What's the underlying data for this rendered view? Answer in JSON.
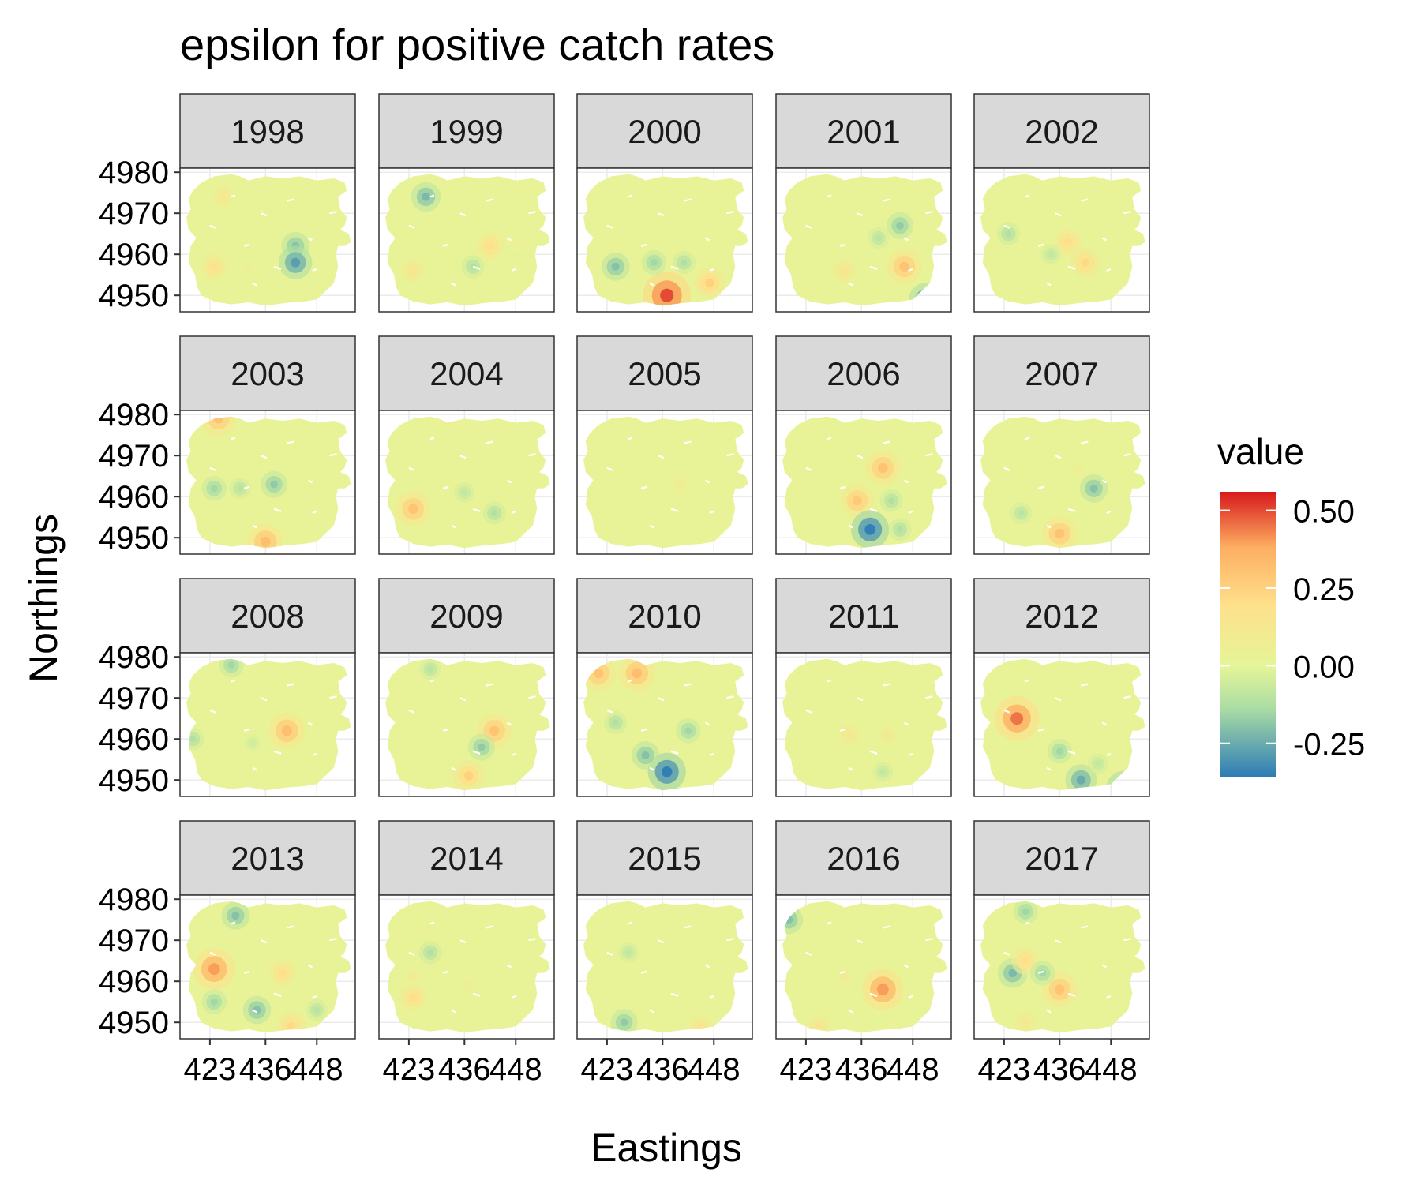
{
  "chart_data": {
    "type": "heatmap",
    "title": "epsilon for positive catch rates",
    "xlabel": "Eastings",
    "ylabel": "Northings",
    "facets": [
      "1998",
      "1999",
      "2000",
      "2001",
      "2002",
      "2003",
      "2004",
      "2005",
      "2006",
      "2007",
      "2008",
      "2009",
      "2010",
      "2011",
      "2012",
      "2013",
      "2014",
      "2015",
      "2016",
      "2017"
    ],
    "x_ticks": [
      "423",
      "436",
      "448"
    ],
    "x_tick_values": [
      423,
      436,
      448
    ],
    "y_ticks": [
      "4980",
      "4970",
      "4960",
      "4950"
    ],
    "y_tick_values": [
      4980,
      4970,
      4960,
      4950
    ],
    "xlim": [
      416,
      457
    ],
    "ylim": [
      4946,
      4981
    ],
    "legend": {
      "title": "value",
      "labels": [
        "0.50",
        "0.25",
        "0.00",
        "-0.25"
      ],
      "values": [
        0.5,
        0.25,
        0.0,
        -0.25
      ],
      "range": [
        -0.36,
        0.56
      ],
      "colors": [
        "#2c7bb6",
        "#abdda4",
        "#e6f598",
        "#fee08b",
        "#fdae61",
        "#d7191c"
      ],
      "position": "right"
    },
    "hotspots": {
      "1998": [
        [
          426,
          4974,
          0.12
        ],
        [
          443,
          4962,
          -0.2
        ],
        [
          443,
          4958,
          -0.28
        ],
        [
          424,
          4957,
          0.18
        ],
        [
          432,
          4957,
          0.05
        ]
      ],
      "1999": [
        [
          427,
          4974,
          -0.22
        ],
        [
          442,
          4962,
          0.2
        ],
        [
          424,
          4956,
          0.15
        ],
        [
          438,
          4957,
          -0.12
        ],
        [
          448,
          4963,
          0.05
        ]
      ],
      "2000": [
        [
          437,
          4950,
          0.5
        ],
        [
          447,
          4953,
          0.25
        ],
        [
          425,
          4957,
          -0.2
        ],
        [
          434,
          4958,
          -0.15
        ],
        [
          441,
          4958,
          -0.12
        ]
      ],
      "2001": [
        [
          445,
          4967,
          -0.18
        ],
        [
          440,
          4964,
          -0.1
        ],
        [
          446,
          4957,
          0.3
        ],
        [
          432,
          4956,
          0.15
        ],
        [
          451,
          4949,
          -0.28
        ]
      ],
      "2002": [
        [
          438,
          4963,
          0.2
        ],
        [
          442,
          4958,
          0.22
        ],
        [
          424,
          4965,
          -0.12
        ],
        [
          434,
          4960,
          -0.08
        ]
      ],
      "2003": [
        [
          425,
          4979,
          0.3
        ],
        [
          436,
          4949,
          0.32
        ],
        [
          438,
          4963,
          -0.18
        ],
        [
          424,
          4962,
          -0.15
        ],
        [
          430,
          4962,
          -0.1
        ]
      ],
      "2004": [
        [
          424,
          4957,
          0.3
        ],
        [
          432,
          4979,
          0.1
        ],
        [
          443,
          4956,
          -0.12
        ],
        [
          436,
          4961,
          -0.08
        ]
      ],
      "2005": [
        [
          440,
          4963,
          0.08
        ]
      ],
      "2006": [
        [
          441,
          4967,
          0.3
        ],
        [
          435,
          4959,
          0.28
        ],
        [
          438,
          4952,
          -0.35
        ],
        [
          443,
          4959,
          -0.12
        ],
        [
          445,
          4952,
          -0.12
        ]
      ],
      "2007": [
        [
          444,
          4962,
          -0.2
        ],
        [
          436,
          4951,
          0.3
        ],
        [
          427,
          4956,
          -0.1
        ],
        [
          440,
          4967,
          0.06
        ]
      ],
      "2008": [
        [
          441,
          4962,
          0.32
        ],
        [
          428,
          4978,
          -0.15
        ],
        [
          419,
          4960,
          -0.12
        ],
        [
          433,
          4959,
          -0.05
        ]
      ],
      "2009": [
        [
          443,
          4962,
          0.3
        ],
        [
          437,
          4951,
          0.25
        ],
        [
          440,
          4958,
          -0.18
        ],
        [
          428,
          4977,
          -0.1
        ]
      ],
      "2010": [
        [
          421,
          4976,
          0.3
        ],
        [
          430,
          4976,
          0.32
        ],
        [
          437,
          4952,
          -0.35
        ],
        [
          442,
          4962,
          -0.15
        ],
        [
          432,
          4956,
          -0.2
        ],
        [
          425,
          4964,
          -0.12
        ]
      ],
      "2011": [
        [
          433,
          4961,
          0.12
        ],
        [
          442,
          4961,
          0.1
        ],
        [
          441,
          4952,
          -0.08
        ]
      ],
      "2012": [
        [
          426,
          4965,
          0.45
        ],
        [
          451,
          4948,
          -0.3
        ],
        [
          441,
          4950,
          -0.25
        ],
        [
          436,
          4957,
          -0.15
        ],
        [
          445,
          4954,
          -0.08
        ]
      ],
      "2013": [
        [
          424,
          4963,
          0.4
        ],
        [
          440,
          4962,
          0.2
        ],
        [
          429,
          4976,
          -0.2
        ],
        [
          424,
          4955,
          -0.15
        ],
        [
          434,
          4953,
          -0.2
        ],
        [
          448,
          4953,
          -0.1
        ],
        [
          442,
          4949,
          0.22
        ]
      ],
      "2014": [
        [
          424,
          4956,
          0.2
        ],
        [
          437,
          4959,
          0.06
        ],
        [
          428,
          4967,
          -0.12
        ],
        [
          424,
          4961,
          0.08
        ]
      ],
      "2015": [
        [
          427,
          4950,
          -0.18
        ],
        [
          445,
          4949,
          0.15
        ],
        [
          428,
          4967,
          -0.08
        ]
      ],
      "2016": [
        [
          441,
          4958,
          0.4
        ],
        [
          419,
          4975,
          -0.2
        ],
        [
          426,
          4949,
          0.15
        ],
        [
          432,
          4961,
          0.08
        ]
      ],
      "2017": [
        [
          425,
          4962,
          -0.22
        ],
        [
          428,
          4965,
          0.2
        ],
        [
          436,
          4958,
          0.3
        ],
        [
          428,
          4977,
          -0.15
        ],
        [
          428,
          4950,
          0.12
        ],
        [
          432,
          4962,
          -0.15
        ]
      ]
    }
  }
}
